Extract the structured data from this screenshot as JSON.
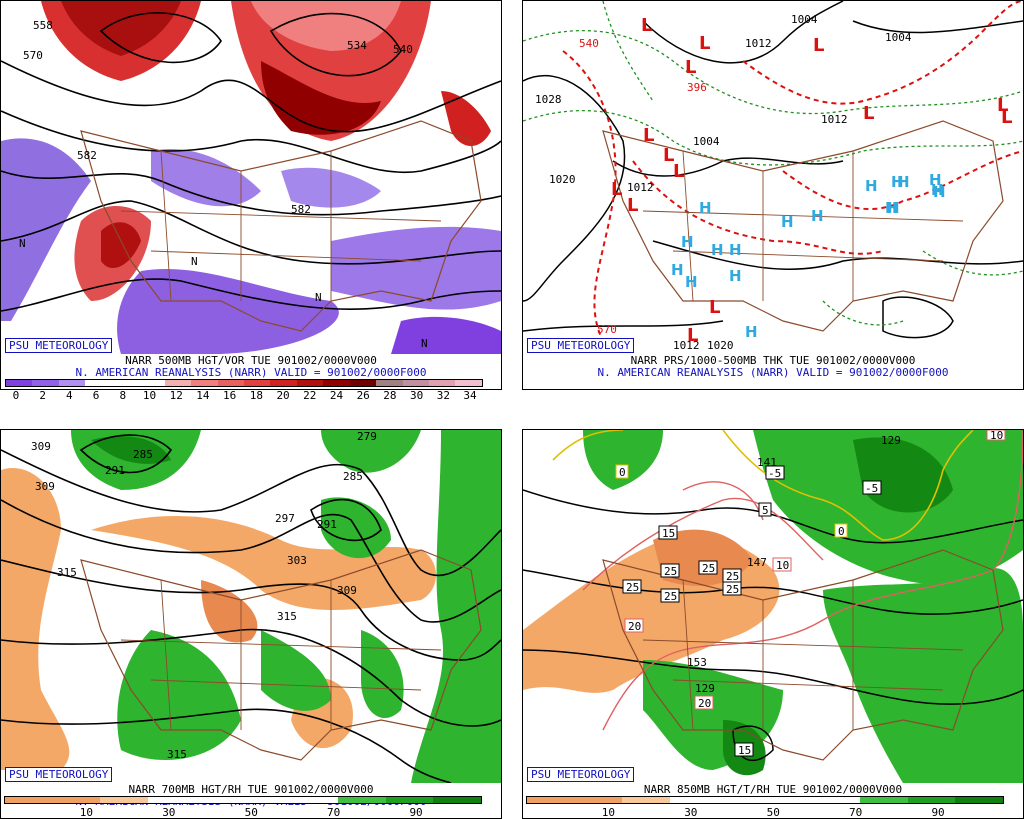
{
  "panels": [
    {
      "id": "p1",
      "credit": "PSU METEOROLOGY",
      "title": "NARR 500MB HGT/VOR TUE 901002/0000V000",
      "valid": "N. AMERICAN REANALYSIS (NARR) VALID = 901002/0000F000",
      "contour_labels": [
        "558",
        "570",
        "534",
        "540",
        "582",
        "582",
        "N",
        "N",
        "N",
        "N"
      ],
      "colorbar": {
        "ticks": [
          "0",
          "2",
          "4",
          "6",
          "8",
          "10",
          "12",
          "14",
          "16",
          "18",
          "20",
          "22",
          "24",
          "26",
          "28",
          "30",
          "32",
          "34"
        ],
        "colors": [
          "#8040e0",
          "#9060e8",
          "#b090f0",
          "#ffffff",
          "#ffffff",
          "#ffffff",
          "#f4b0b0",
          "#f08080",
          "#e86060",
          "#e04040",
          "#d02020",
          "#b01010",
          "#900000",
          "#700000",
          "#a08080",
          "#c090a0",
          "#e0a0b0",
          "#f0c0d0"
        ]
      }
    },
    {
      "id": "p2",
      "credit": "PSU METEOROLOGY",
      "title": "NARR PRS/1000-500MB THK TUE 901002/0000V000",
      "valid": "N. AMERICAN REANALYSIS (NARR) VALID = 901002/0000F000",
      "isobar_labels": [
        "1004",
        "1012",
        "1004",
        "1028",
        "1020",
        "1012",
        "1012",
        "1004",
        "1020",
        "1012",
        "540",
        "570",
        "396"
      ],
      "lows": 14,
      "highs": 18
    },
    {
      "id": "p3",
      "credit": "PSU METEOROLOGY",
      "title": "NARR 700MB HGT/RH TUE 901002/0000V000",
      "valid": "N. AMERICAN REANALYSIS (NARR) VALID = 901002/0000F000",
      "contour_labels": [
        "309",
        "309",
        "291",
        "285",
        "279",
        "285",
        "297",
        "291",
        "303",
        "309",
        "315",
        "315",
        "315"
      ],
      "colorbar": {
        "ticks": [
          "10",
          "30",
          "50",
          "70",
          "90"
        ],
        "colors": [
          "#f0a060",
          "#f0a060",
          "#f8c898",
          "#ffffff",
          "#ffffff",
          "#ffffff",
          "#ffffff",
          "#40c040",
          "#20a020",
          "#108010"
        ]
      }
    },
    {
      "id": "p4",
      "credit": "PSU METEOROLOGY",
      "title": "NARR 850MB HGT/T/RH TUE 901002/0000V000",
      "contour_labels": [
        "129",
        "141",
        "147",
        "153",
        "129",
        "15",
        "25",
        "25",
        "25",
        "25",
        "25",
        "25",
        "15",
        "-5",
        "-5",
        "5",
        "0",
        "0",
        "10",
        "20",
        "20",
        "15",
        "10"
      ],
      "colorbar": {
        "ticks": [
          "10",
          "30",
          "50",
          "70",
          "90"
        ],
        "colors": [
          "#f0a060",
          "#f0a060",
          "#f8c898",
          "#ffffff",
          "#ffffff",
          "#ffffff",
          "#ffffff",
          "#40c040",
          "#20a020",
          "#108010"
        ]
      }
    }
  ]
}
